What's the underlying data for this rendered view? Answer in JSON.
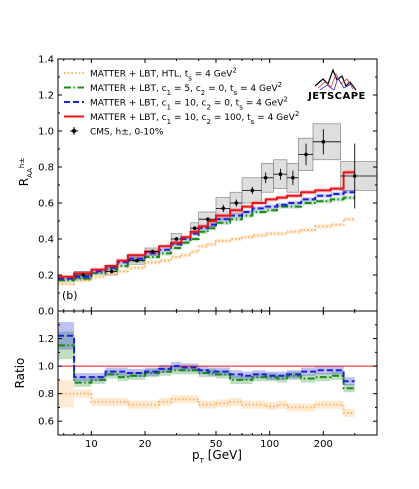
{
  "chart_data": [
    {
      "type": "step",
      "panel_label": "(b)",
      "ylabel": "R_AA^{h±}",
      "ylim": [
        0.0,
        1.4
      ],
      "yticks": [
        0.0,
        0.2,
        0.4,
        0.6,
        0.8,
        1.0,
        1.2,
        1.4
      ],
      "xscale": "log",
      "xlim": [
        6.5,
        400
      ],
      "legend_position": "top-left",
      "logo": "JETSCAPE",
      "bin_edges": [
        6.5,
        8,
        10,
        12,
        14,
        16,
        20,
        24,
        28,
        32,
        36,
        40,
        45,
        50,
        60,
        70,
        80,
        95,
        110,
        125,
        150,
        180,
        220,
        260,
        300
      ],
      "series": [
        {
          "label_parts": [
            "MATTER + LBT, ",
            "HTL",
            ", ",
            "t",
            "s",
            " = 4 GeV",
            "2"
          ],
          "color": "#ffb463",
          "style": "dotted",
          "values": [
            0.15,
            0.17,
            0.19,
            0.21,
            0.22,
            0.24,
            0.27,
            0.28,
            0.3,
            0.31,
            0.33,
            0.36,
            0.37,
            0.39,
            0.4,
            0.41,
            0.42,
            0.43,
            0.43,
            0.44,
            0.45,
            0.47,
            0.48,
            0.51
          ]
        },
        {
          "label_parts": [
            "MATTER + LBT, ",
            "c",
            "1",
            " = 5, ",
            "c",
            "2",
            " = 0, ",
            "t",
            "s",
            " = 4 GeV",
            "2"
          ],
          "color": "#1a8a1a",
          "style": "dashdot",
          "values": [
            0.17,
            0.18,
            0.21,
            0.23,
            0.25,
            0.28,
            0.3,
            0.32,
            0.35,
            0.38,
            0.4,
            0.44,
            0.46,
            0.49,
            0.51,
            0.53,
            0.55,
            0.56,
            0.58,
            0.58,
            0.6,
            0.61,
            0.62,
            0.63
          ]
        },
        {
          "label_parts": [
            "MATTER + LBT, ",
            "c",
            "1",
            " = 10, ",
            "c",
            "2",
            " = 0, ",
            "t",
            "s",
            " = 4 GeV",
            "2"
          ],
          "color": "#1a22d6",
          "style": "dashed",
          "values": [
            0.18,
            0.19,
            0.22,
            0.24,
            0.27,
            0.29,
            0.32,
            0.34,
            0.37,
            0.4,
            0.43,
            0.46,
            0.48,
            0.51,
            0.53,
            0.55,
            0.57,
            0.58,
            0.59,
            0.6,
            0.62,
            0.64,
            0.65,
            0.66
          ]
        },
        {
          "label_parts": [
            "MATTER + LBT, ",
            "c",
            "1",
            " = 10, ",
            "c",
            "2",
            " = 100, ",
            "t",
            "s",
            " = 4 GeV",
            "2"
          ],
          "color": "#e8141a",
          "style": "solid",
          "values": [
            0.19,
            0.21,
            0.23,
            0.25,
            0.28,
            0.31,
            0.33,
            0.36,
            0.38,
            0.41,
            0.44,
            0.47,
            0.5,
            0.53,
            0.56,
            0.58,
            0.6,
            0.62,
            0.63,
            0.64,
            0.66,
            0.67,
            0.68,
            0.77
          ]
        }
      ],
      "measurement": {
        "label": "CMS, h±, 0-10%",
        "points": [
          {
            "x": 9.0,
            "y": 0.2,
            "yerr": 0.01,
            "xlo": 8,
            "xhi": 10,
            "syst": 0.02
          },
          {
            "x": 13.0,
            "y": 0.22,
            "yerr": 0.01,
            "xlo": 12,
            "xhi": 14,
            "syst": 0.02
          },
          {
            "x": 18.0,
            "y": 0.28,
            "yerr": 0.01,
            "xlo": 16,
            "xhi": 20,
            "syst": 0.02
          },
          {
            "x": 22.0,
            "y": 0.33,
            "yerr": 0.01,
            "xlo": 20,
            "xhi": 24,
            "syst": 0.02
          },
          {
            "x": 30.0,
            "y": 0.4,
            "yerr": 0.01,
            "xlo": 28,
            "xhi": 32,
            "syst": 0.03
          },
          {
            "x": 38.0,
            "y": 0.46,
            "yerr": 0.01,
            "xlo": 36,
            "xhi": 40,
            "syst": 0.03
          },
          {
            "x": 45.0,
            "y": 0.51,
            "yerr": 0.01,
            "xlo": 40,
            "xhi": 50,
            "syst": 0.04
          },
          {
            "x": 55.0,
            "y": 0.57,
            "yerr": 0.02,
            "xlo": 50,
            "xhi": 60,
            "syst": 0.06
          },
          {
            "x": 65.0,
            "y": 0.6,
            "yerr": 0.02,
            "xlo": 60,
            "xhi": 70,
            "syst": 0.06
          },
          {
            "x": 80.0,
            "y": 0.67,
            "yerr": 0.02,
            "xlo": 70,
            "xhi": 90,
            "syst": 0.07
          },
          {
            "x": 95.0,
            "y": 0.74,
            "yerr": 0.03,
            "xlo": 90,
            "xhi": 105,
            "syst": 0.08
          },
          {
            "x": 115.0,
            "y": 0.76,
            "yerr": 0.03,
            "xlo": 105,
            "xhi": 125,
            "syst": 0.08
          },
          {
            "x": 135.0,
            "y": 0.74,
            "yerr": 0.04,
            "xlo": 125,
            "xhi": 145,
            "syst": 0.08
          },
          {
            "x": 160.0,
            "y": 0.87,
            "yerr": 0.06,
            "xlo": 145,
            "xhi": 175,
            "syst": 0.09
          },
          {
            "x": 200.0,
            "y": 0.94,
            "yerr": 0.07,
            "xlo": 175,
            "xhi": 250,
            "syst": 0.1
          },
          {
            "x": 300.0,
            "y": 0.75,
            "yerr": 0.18,
            "xlo": 250,
            "xhi": 400,
            "syst": 0.08
          }
        ]
      }
    },
    {
      "type": "step",
      "ylabel": "Ratio",
      "xlabel": "p_T [GeV]",
      "ylim": [
        0.5,
        1.4
      ],
      "yticks": [
        0.6,
        0.8,
        1.0,
        1.2
      ],
      "xscale": "log",
      "xticks": [
        10,
        20,
        50,
        100,
        200
      ],
      "reference_line": 1.0,
      "bin_edges": [
        6.5,
        8,
        10,
        12,
        14,
        16,
        20,
        24,
        28,
        32,
        36,
        40,
        45,
        50,
        60,
        70,
        80,
        95,
        110,
        125,
        150,
        180,
        220,
        260,
        300
      ],
      "series": [
        {
          "name": "HTL",
          "color": "#ffb463",
          "style": "dotted",
          "values": [
            0.8,
            0.8,
            0.74,
            0.74,
            0.74,
            0.72,
            0.72,
            0.74,
            0.76,
            0.76,
            0.76,
            0.72,
            0.72,
            0.73,
            0.74,
            0.72,
            0.72,
            0.71,
            0.72,
            0.7,
            0.7,
            0.72,
            0.72,
            0.66
          ]
        },
        {
          "name": "c1=5",
          "color": "#1a8a1a",
          "style": "dashdot",
          "values": [
            1.15,
            0.88,
            0.9,
            0.94,
            0.92,
            0.93,
            0.95,
            0.96,
            0.97,
            0.97,
            0.97,
            0.95,
            0.95,
            0.94,
            0.9,
            0.9,
            0.92,
            0.92,
            0.91,
            0.93,
            0.91,
            0.92,
            0.93,
            0.84
          ]
        },
        {
          "name": "c1=10",
          "color": "#1a22d6",
          "style": "dashed",
          "values": [
            1.22,
            0.92,
            0.92,
            0.96,
            0.96,
            0.95,
            0.96,
            0.98,
            1.0,
            0.99,
            0.99,
            0.97,
            0.96,
            0.96,
            0.94,
            0.93,
            0.94,
            0.93,
            0.93,
            0.94,
            0.96,
            0.97,
            0.97,
            0.89
          ]
        }
      ]
    }
  ]
}
